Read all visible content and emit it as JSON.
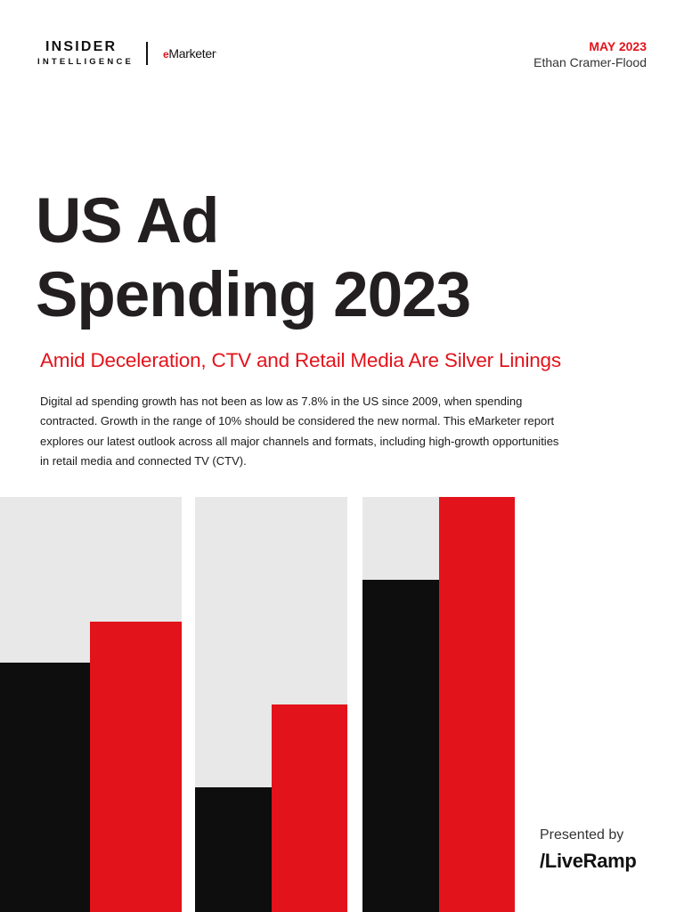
{
  "header": {
    "brand_primary": "INSIDER",
    "brand_secondary": "INTELLIGENCE",
    "brand_partner": "Marketer",
    "brand_partner_mark": "e",
    "brand_partner_tm": ".",
    "date": "MAY 2023",
    "author": "Ethan Cramer-Flood"
  },
  "report": {
    "title_lines": [
      "US Ad",
      "Spending 2023"
    ],
    "subtitle": "Amid Deceleration, CTV and Retail Media Are Silver Linings",
    "summary_lines": [
      "Digital ad spending growth has not been as low as 7.8% in the US since 2009, when spending",
      "contracted. Growth in the range of 10% should be considered the new normal. This eMarketer report",
      "explores our latest outlook across all major channels and formats, including high-growth opportunities",
      "in retail media and connected TV (CTV)."
    ]
  },
  "cover_art": {
    "colors": {
      "panel": "#e8e8e8",
      "black_bar": "#0e0e0e",
      "red_bar": "#e3131b"
    },
    "groups": [
      {
        "black_fill": 0.6,
        "red_fill": 0.7
      },
      {
        "black_fill": 0.3,
        "red_fill": 0.5
      },
      {
        "black_fill": 0.8,
        "red_fill": 1.0
      }
    ]
  },
  "footer": {
    "presented_by": "Presented by",
    "sponsor": "/LiveRamp"
  },
  "theme": {
    "accent": "#e3131b",
    "text": "#231f20"
  }
}
